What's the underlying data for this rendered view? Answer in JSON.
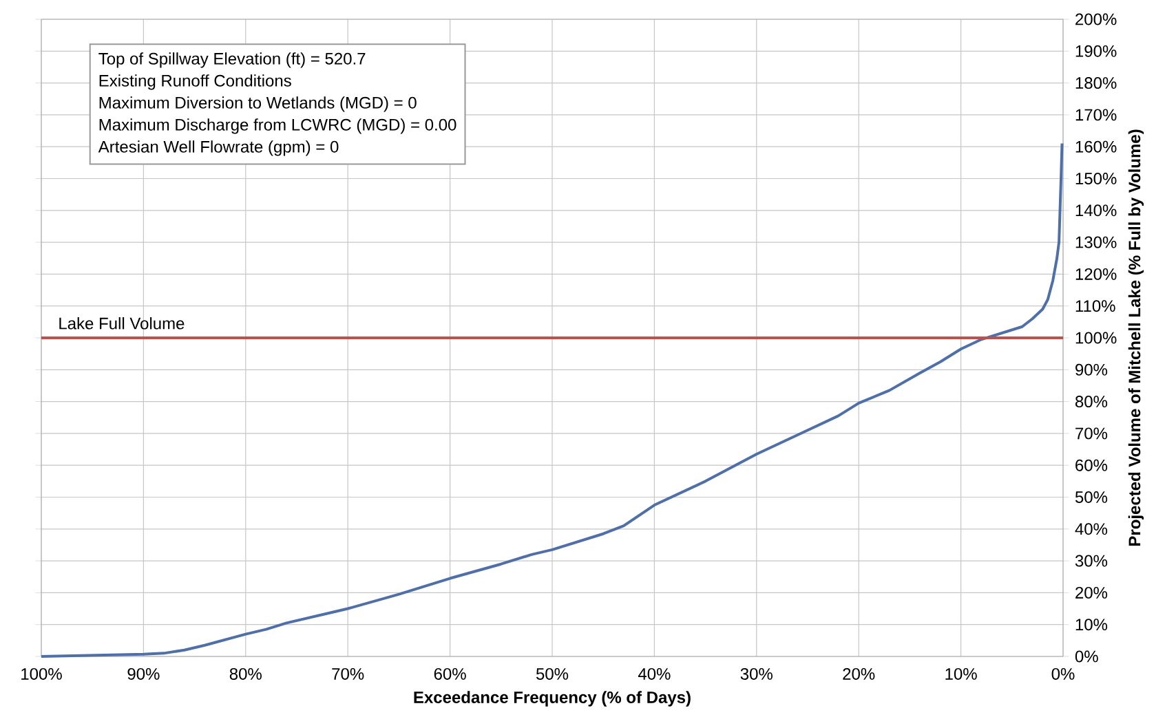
{
  "chart_data": {
    "type": "line",
    "xlabel": "Exceedance Frequency (% of Days)",
    "ylabel": "Projected Volume of Mitchell Lake (% Full by Volume)",
    "annotations": [
      "Top of Spillway Elevation (ft) = 520.7",
      "Existing Runoff Conditions",
      "Maximum Diversion to Wetlands (MGD) =  0",
      "Maximum Discharge from LCWRC (MGD) = 0.00",
      "Artesian Well Flowrate (gpm) =  0"
    ],
    "x": [
      100,
      90,
      88,
      86,
      84,
      80,
      78,
      76,
      72,
      70,
      65,
      60,
      55,
      52,
      50,
      45,
      43,
      40,
      35,
      30,
      25,
      22,
      20,
      17,
      14,
      12,
      10,
      8,
      6,
      4,
      3,
      2,
      1.5,
      1,
      0.6,
      0.4,
      0.3,
      0.2,
      0.1
    ],
    "series": [
      {
        "color": "#4f6fa8",
        "values": [
          0,
          0.7,
          1,
          2,
          3.5,
          7,
          8.5,
          10.5,
          13.5,
          15,
          19.5,
          24.5,
          29,
          32,
          33.5,
          38.5,
          41,
          47.5,
          55,
          63.5,
          71,
          75.5,
          79.5,
          83.5,
          89,
          92.5,
          96.5,
          99.5,
          101.5,
          103.5,
          106,
          109,
          112,
          118,
          125,
          130,
          140,
          150,
          161
        ]
      }
    ],
    "xlim": [
      100,
      0
    ],
    "xticks": [
      {
        "value": 100,
        "label": "100%"
      },
      {
        "value": 90,
        "label": "90%"
      },
      {
        "value": 80,
        "label": "80%"
      },
      {
        "value": 70,
        "label": "70%"
      },
      {
        "value": 60,
        "label": "60%"
      },
      {
        "value": 50,
        "label": "50%"
      },
      {
        "value": 40,
        "label": "40%"
      },
      {
        "value": 30,
        "label": "30%"
      },
      {
        "value": 20,
        "label": "20%"
      },
      {
        "value": 10,
        "label": "10%"
      },
      {
        "value": 0,
        "label": "0%"
      }
    ],
    "ylim": [
      0,
      200
    ],
    "yticks": [
      {
        "value": 0,
        "label": "0%"
      },
      {
        "value": 10,
        "label": "10%"
      },
      {
        "value": 20,
        "label": "20%"
      },
      {
        "value": 30,
        "label": "30%"
      },
      {
        "value": 40,
        "label": "40%"
      },
      {
        "value": 50,
        "label": "50%"
      },
      {
        "value": 60,
        "label": "60%"
      },
      {
        "value": 70,
        "label": "70%"
      },
      {
        "value": 80,
        "label": "80%"
      },
      {
        "value": 90,
        "label": "90%"
      },
      {
        "value": 100,
        "label": "100%"
      },
      {
        "value": 110,
        "label": "110%"
      },
      {
        "value": 120,
        "label": "120%"
      },
      {
        "value": 130,
        "label": "130%"
      },
      {
        "value": 140,
        "label": "140%"
      },
      {
        "value": 150,
        "label": "150%"
      },
      {
        "value": 160,
        "label": "160%"
      },
      {
        "value": 170,
        "label": "170%"
      },
      {
        "value": 180,
        "label": "180%"
      },
      {
        "value": 190,
        "label": "190%"
      },
      {
        "value": 200,
        "label": "200%"
      }
    ],
    "ref_lines": [
      {
        "axis": "y",
        "value": 100,
        "label": "Lake Full Volume",
        "color": "#c0504d"
      }
    ],
    "grid": true,
    "marker": "none",
    "line_style": "solid"
  }
}
